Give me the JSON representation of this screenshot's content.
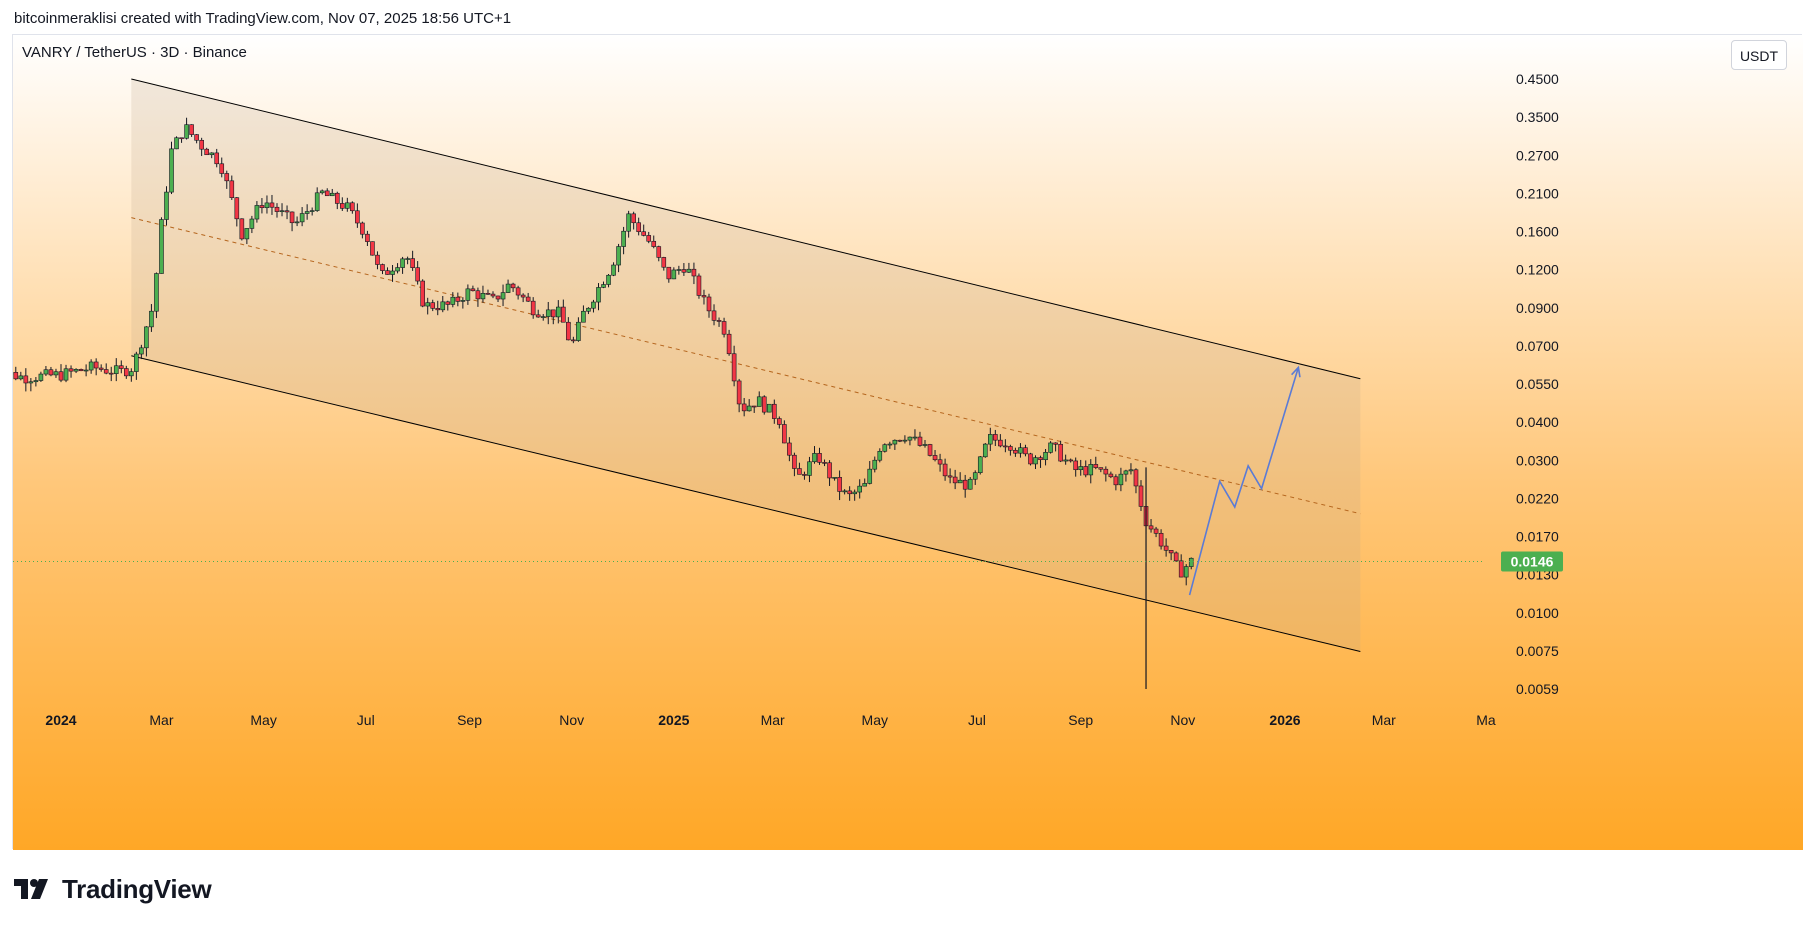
{
  "header": {
    "credit": "bitcoinmeraklisi created with TradingView.com, Nov 07, 2025 18:56 UTC+1"
  },
  "symbol": {
    "title": "VANRY / TetherUS · 3D · Binance",
    "currency_button": "USDT"
  },
  "brand": {
    "name": "TradingView"
  },
  "colors": {
    "up_candle": "#4caf50",
    "down_candle": "#f23645",
    "current_price_badge": "#4caf50",
    "projection_line": "#5b7bd5",
    "mid_line": "#b5651d",
    "channel_line": "#000000",
    "background_top": "#ffffff",
    "background_bottom": "#ffa726"
  },
  "chart_data": {
    "type": "candlestick",
    "scale": "log",
    "timeframe": "3D",
    "pair": "VANRY / TetherUS",
    "exchange": "Binance",
    "quote_currency": "USDT",
    "y_ticks": [
      "0.4500",
      "0.3500",
      "0.2700",
      "0.2100",
      "0.1600",
      "0.1200",
      "0.0900",
      "0.0700",
      "0.0550",
      "0.0400",
      "0.0300",
      "0.0220",
      "0.0170",
      "0.0130",
      "0.0100",
      "0.0075",
      "0.0059"
    ],
    "x_ticks": [
      {
        "label": "2024",
        "date": "2024-01-01",
        "bold": true
      },
      {
        "label": "Mar",
        "date": "2024-03-01",
        "bold": false
      },
      {
        "label": "May",
        "date": "2024-05-01",
        "bold": false
      },
      {
        "label": "Jul",
        "date": "2024-07-01",
        "bold": false
      },
      {
        "label": "Sep",
        "date": "2024-09-01",
        "bold": false
      },
      {
        "label": "Nov",
        "date": "2024-11-01",
        "bold": false
      },
      {
        "label": "2025",
        "date": "2025-01-01",
        "bold": true
      },
      {
        "label": "Mar",
        "date": "2025-03-01",
        "bold": false
      },
      {
        "label": "May",
        "date": "2025-05-01",
        "bold": false
      },
      {
        "label": "Jul",
        "date": "2025-07-01",
        "bold": false
      },
      {
        "label": "Sep",
        "date": "2025-09-01",
        "bold": false
      },
      {
        "label": "Nov",
        "date": "2025-11-01",
        "bold": false
      },
      {
        "label": "2026",
        "date": "2026-01-01",
        "bold": true
      },
      {
        "label": "Mar",
        "date": "2026-03-01",
        "bold": false
      },
      {
        "label": "Ma",
        "date": "2026-05-01",
        "bold": false
      }
    ],
    "current_price": "0.0146",
    "candle_anchors": [
      [
        "2023-11-20",
        0.057
      ],
      [
        "2023-12-10",
        0.054
      ],
      [
        "2024-01-01",
        0.055
      ],
      [
        "2024-01-20",
        0.058
      ],
      [
        "2024-02-05",
        0.056
      ],
      [
        "2024-02-13",
        0.058
      ],
      [
        "2024-02-25",
        0.09
      ],
      [
        "2024-03-01",
        0.16
      ],
      [
        "2024-03-07",
        0.27
      ],
      [
        "2024-03-15",
        0.32
      ],
      [
        "2024-03-25",
        0.28
      ],
      [
        "2024-04-05",
        0.25
      ],
      [
        "2024-04-18",
        0.15
      ],
      [
        "2024-05-01",
        0.19
      ],
      [
        "2024-05-20",
        0.16
      ],
      [
        "2024-06-05",
        0.2
      ],
      [
        "2024-06-20",
        0.18
      ],
      [
        "2024-07-01",
        0.15
      ],
      [
        "2024-07-10",
        0.11
      ],
      [
        "2024-07-25",
        0.13
      ],
      [
        "2024-08-05",
        0.09
      ],
      [
        "2024-08-20",
        0.09
      ],
      [
        "2024-09-01",
        0.1
      ],
      [
        "2024-09-15",
        0.093
      ],
      [
        "2024-09-25",
        0.105
      ],
      [
        "2024-10-10",
        0.087
      ],
      [
        "2024-10-25",
        0.085
      ],
      [
        "2024-11-01",
        0.067
      ],
      [
        "2024-11-08",
        0.085
      ],
      [
        "2024-11-25",
        0.12
      ],
      [
        "2024-12-05",
        0.17
      ],
      [
        "2024-12-18",
        0.14
      ],
      [
        "2024-12-28",
        0.11
      ],
      [
        "2025-01-08",
        0.12
      ],
      [
        "2025-01-20",
        0.09
      ],
      [
        "2025-02-01",
        0.075
      ],
      [
        "2025-02-10",
        0.043
      ],
      [
        "2025-02-20",
        0.046
      ],
      [
        "2025-03-05",
        0.04
      ],
      [
        "2025-03-15",
        0.026
      ],
      [
        "2025-03-28",
        0.031
      ],
      [
        "2025-04-08",
        0.025
      ],
      [
        "2025-04-15",
        0.023
      ],
      [
        "2025-04-25",
        0.025
      ],
      [
        "2025-05-05",
        0.034
      ],
      [
        "2025-05-20",
        0.036
      ],
      [
        "2025-06-01",
        0.032
      ],
      [
        "2025-06-15",
        0.026
      ],
      [
        "2025-06-28",
        0.025
      ],
      [
        "2025-07-08",
        0.035
      ],
      [
        "2025-07-20",
        0.034
      ],
      [
        "2025-08-01",
        0.03
      ],
      [
        "2025-08-15",
        0.033
      ],
      [
        "2025-08-28",
        0.028
      ],
      [
        "2025-09-10",
        0.028
      ],
      [
        "2025-09-22",
        0.026
      ],
      [
        "2025-10-01",
        0.028
      ],
      [
        "2025-10-10",
        0.0195
      ],
      [
        "2025-10-20",
        0.0165
      ],
      [
        "2025-10-30",
        0.0135
      ],
      [
        "2025-11-06",
        0.0146
      ]
    ],
    "flash_crash": {
      "date": "2025-10-10",
      "low": 0.0059
    },
    "channel": {
      "upper": [
        [
          "2024-02-12",
          0.45
        ],
        [
          "2026-02-15",
          0.0535
        ]
      ],
      "lower": [
        [
          "2024-02-12",
          0.063
        ],
        [
          "2026-02-15",
          0.0077
        ]
      ],
      "mid": [
        [
          "2024-02-12",
          0.168
        ],
        [
          "2026-02-15",
          0.0205
        ]
      ]
    },
    "projection": [
      [
        "2025-11-05",
        0.0115
      ],
      [
        "2025-11-23",
        0.0258
      ],
      [
        "2025-12-02",
        0.0215
      ],
      [
        "2025-12-10",
        0.0288
      ],
      [
        "2025-12-18",
        0.0245
      ],
      [
        "2026-01-09",
        0.058
      ]
    ]
  }
}
